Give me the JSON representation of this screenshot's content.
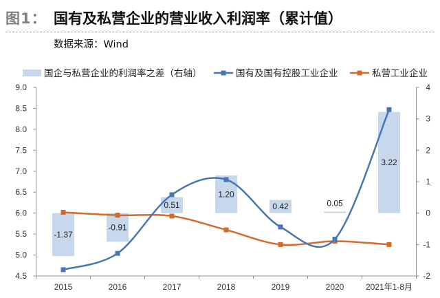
{
  "header": {
    "figure_label": "图1：",
    "title": "国有及私营企业的营业收入利润率（累计值）",
    "source": "数据来源：Wind"
  },
  "colors": {
    "figure_label": "#808080",
    "state_line": "#4a74b4",
    "private_line": "#d4692a",
    "diff_bar": "#c8d8ec",
    "axis": "#8c8c8c"
  },
  "chart_data": {
    "type": "line",
    "title": "国有及私营企业的营业收入利润率（累计值）",
    "xlabel": "",
    "ylabel": "",
    "categories": [
      "2015",
      "2016",
      "2017",
      "2018",
      "2019",
      "2020",
      "2021年1-8月"
    ],
    "series": [
      {
        "name": "国企与私营企业的利润率之差（右轴）",
        "chart_type": "bar",
        "axis": "right",
        "values": [
          -1.37,
          -0.91,
          0.51,
          1.2,
          0.42,
          0.05,
          3.22
        ],
        "labels": [
          "-1.37",
          "-0.91",
          "0.51",
          "1.20",
          "0.42",
          "0.05",
          "3.22"
        ]
      },
      {
        "name": "国有及国有控股工业企业",
        "chart_type": "line",
        "axis": "left",
        "marker": "square",
        "smooth": true,
        "values": [
          4.65,
          5.04,
          6.44,
          6.8,
          5.67,
          5.38,
          8.47
        ]
      },
      {
        "name": "私营工业企业",
        "chart_type": "line",
        "axis": "left",
        "marker": "square",
        "smooth": true,
        "values": [
          6.02,
          5.95,
          5.93,
          5.6,
          5.25,
          5.33,
          5.25
        ]
      }
    ],
    "y_left": {
      "min": 4.5,
      "max": 9.0,
      "tick_labels": [
        "9.0",
        "8.5",
        "8.0",
        "7.5",
        "7.0",
        "6.5",
        "6.0",
        "5.5",
        "5.0",
        "4.5"
      ]
    },
    "y_right": {
      "min": -2,
      "max": 4,
      "tick_labels": [
        "4",
        "3",
        "2",
        "1",
        "0",
        "-1",
        "-2"
      ]
    },
    "legend": "top",
    "grid": false
  }
}
